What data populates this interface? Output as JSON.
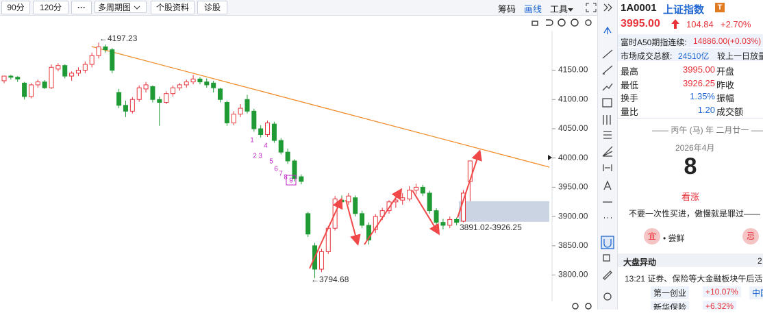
{
  "toolbar": {
    "periods": [
      "90分",
      "120分"
    ],
    "multi": "多周期图",
    "profile": "个股资料",
    "diagnose": "诊股",
    "chips": "筹码",
    "draw": "画线",
    "tools": "工具"
  },
  "chart_data": {
    "type": "candlestick",
    "up_color": "#e8323a",
    "down_color": "#1f9a34",
    "trend_color": "#f08c2a",
    "arrow_color": "#f04848",
    "sequence_color": "#c026c8",
    "ylim": [
      3755,
      4215
    ],
    "yticks": [
      {
        "value": 4150,
        "label": "4150.00"
      },
      {
        "value": 4100,
        "label": "4100.00"
      },
      {
        "value": 4050,
        "label": "4050.00"
      },
      {
        "value": 4000,
        "label": "4000.00"
      },
      {
        "value": 3950,
        "label": "3950.00"
      },
      {
        "value": 3900,
        "label": "3900.00"
      },
      {
        "value": 3850,
        "label": "3850.00"
      },
      {
        "value": 3800,
        "label": "3800.00"
      }
    ],
    "ohlc": [
      [
        4132,
        4140,
        4128,
        4140
      ],
      [
        4140,
        4142,
        4134,
        4138
      ],
      [
        4138,
        4140,
        4130,
        4135
      ],
      [
        4128,
        4130,
        4100,
        4105
      ],
      [
        4105,
        4128,
        4102,
        4125
      ],
      [
        4125,
        4134,
        4120,
        4130
      ],
      [
        4130,
        4133,
        4118,
        4120
      ],
      [
        4120,
        4160,
        4118,
        4155
      ],
      [
        4152,
        4162,
        4148,
        4158
      ],
      [
        4158,
        4160,
        4136,
        4140
      ],
      [
        4140,
        4148,
        4132,
        4145
      ],
      [
        4145,
        4155,
        4140,
        4150
      ],
      [
        4150,
        4165,
        4145,
        4160
      ],
      [
        4160,
        4180,
        4155,
        4175
      ],
      [
        4175,
        4197.23,
        4170,
        4190
      ],
      [
        4190,
        4194,
        4180,
        4185
      ],
      [
        4185,
        4188,
        4145,
        4150
      ],
      [
        4112,
        4118,
        4085,
        4090
      ],
      [
        4090,
        4098,
        4070,
        4080
      ],
      [
        4080,
        4104,
        4076,
        4100
      ],
      [
        4100,
        4124,
        4096,
        4120
      ],
      [
        4118,
        4130,
        4112,
        4125
      ],
      [
        4122,
        4124,
        4095,
        4100
      ],
      [
        4100,
        4105,
        4055,
        4095
      ],
      [
        4095,
        4114,
        4092,
        4110
      ],
      [
        4110,
        4124,
        4105,
        4120
      ],
      [
        4120,
        4128,
        4115,
        4125
      ],
      [
        4125,
        4134,
        4120,
        4130
      ],
      [
        4130,
        4142,
        4126,
        4135
      ],
      [
        4135,
        4138,
        4126,
        4130
      ],
      [
        4130,
        4136,
        4120,
        4125
      ],
      [
        4128,
        4132,
        4112,
        4120
      ],
      [
        4118,
        4120,
        4095,
        4100
      ],
      [
        4095,
        4098,
        4055,
        4060
      ],
      [
        4060,
        4080,
        4056,
        4075
      ],
      [
        4075,
        4092,
        4070,
        4085
      ],
      [
        4100,
        4108,
        4076,
        4080
      ],
      [
        4080,
        4084,
        4045,
        4050
      ],
      [
        4050,
        4056,
        4035,
        4040
      ],
      [
        4040,
        4064,
        4036,
        4060
      ],
      [
        4058,
        4062,
        4026,
        4030
      ],
      [
        4030,
        4034,
        4006,
        4010
      ],
      [
        4010,
        4016,
        3990,
        3995
      ],
      [
        3995,
        3998,
        3960,
        3965
      ],
      [
        3968,
        3972,
        3955,
        3960
      ],
      [
        3905,
        3908,
        3865,
        3870
      ],
      [
        3850,
        3855,
        3794.68,
        3810
      ],
      [
        3810,
        3845,
        3805,
        3840
      ],
      [
        3840,
        3884,
        3836,
        3880
      ],
      [
        3880,
        3935,
        3876,
        3930
      ],
      [
        3928,
        3936,
        3918,
        3925
      ],
      [
        3925,
        3940,
        3920,
        3935
      ],
      [
        3932,
        3936,
        3900,
        3905
      ],
      [
        3905,
        3910,
        3880,
        3885
      ],
      [
        3885,
        3890,
        3852,
        3860
      ],
      [
        3878,
        3904,
        3872,
        3900
      ],
      [
        3900,
        3915,
        3894,
        3910
      ],
      [
        3910,
        3928,
        3905,
        3925
      ],
      [
        3925,
        3933,
        3915,
        3928
      ],
      [
        3928,
        3940,
        3920,
        3932
      ],
      [
        3930,
        3952,
        3926,
        3945
      ],
      [
        3945,
        3956,
        3938,
        3950
      ],
      [
        3950,
        3954,
        3935,
        3940
      ],
      [
        3940,
        3944,
        3905,
        3910
      ],
      [
        3910,
        3914,
        3885,
        3890
      ],
      [
        3890,
        3896,
        3878,
        3885
      ],
      [
        3885,
        3900,
        3880,
        3895
      ],
      [
        3895,
        3898,
        3885,
        3890
      ],
      [
        3892,
        3945,
        3890,
        3940
      ],
      [
        3960,
        3995,
        3926.25,
        3995
      ]
    ],
    "high_label": "←4197.23",
    "low_label": "←3794.68",
    "range": [
      3891.02,
      3926.25
    ],
    "range_label": "3891.02-3926.25",
    "sequence": [
      "1",
      "2",
      "3",
      "4",
      "5",
      "6",
      "7",
      "8",
      "9"
    ]
  },
  "quote": {
    "code": "1A0001",
    "name": "上证指数",
    "badge": "T",
    "price": "3995.00",
    "change": "104.84",
    "pct": "+2.70%",
    "a50_label": "富时A50期指连续:",
    "a50_value": "14886.00(+0.03%)",
    "turnover_label": "市场成交总额:",
    "turnover_value": "24510亿",
    "turnover_note": "较上一日放量",
    "rows": [
      [
        "最高",
        "3995.00",
        "开盘"
      ],
      [
        "最低",
        "3926.25",
        "昨收"
      ],
      [
        "换手",
        "1.35%",
        "振幅"
      ],
      [
        "量比",
        "1.20",
        "成交额"
      ]
    ]
  },
  "calendar": {
    "lunar": "丙午 (马) 年 二月廿一",
    "month": "2026年4月",
    "day": "8",
    "mood": "看涨",
    "quote": "不要一次性买进，傲慢就是罪过——",
    "yi": "宜",
    "yi_item": "• 尝鲜",
    "ji": "忌"
  },
  "news": {
    "title": "大盘异动",
    "count": "2",
    "headline": "13:21 证券、保险等大金融板块午后活",
    "stocks": [
      [
        "第一创业",
        "+10.07%",
        "中国"
      ],
      [
        "新华保险",
        "+6.32%"
      ]
    ]
  }
}
